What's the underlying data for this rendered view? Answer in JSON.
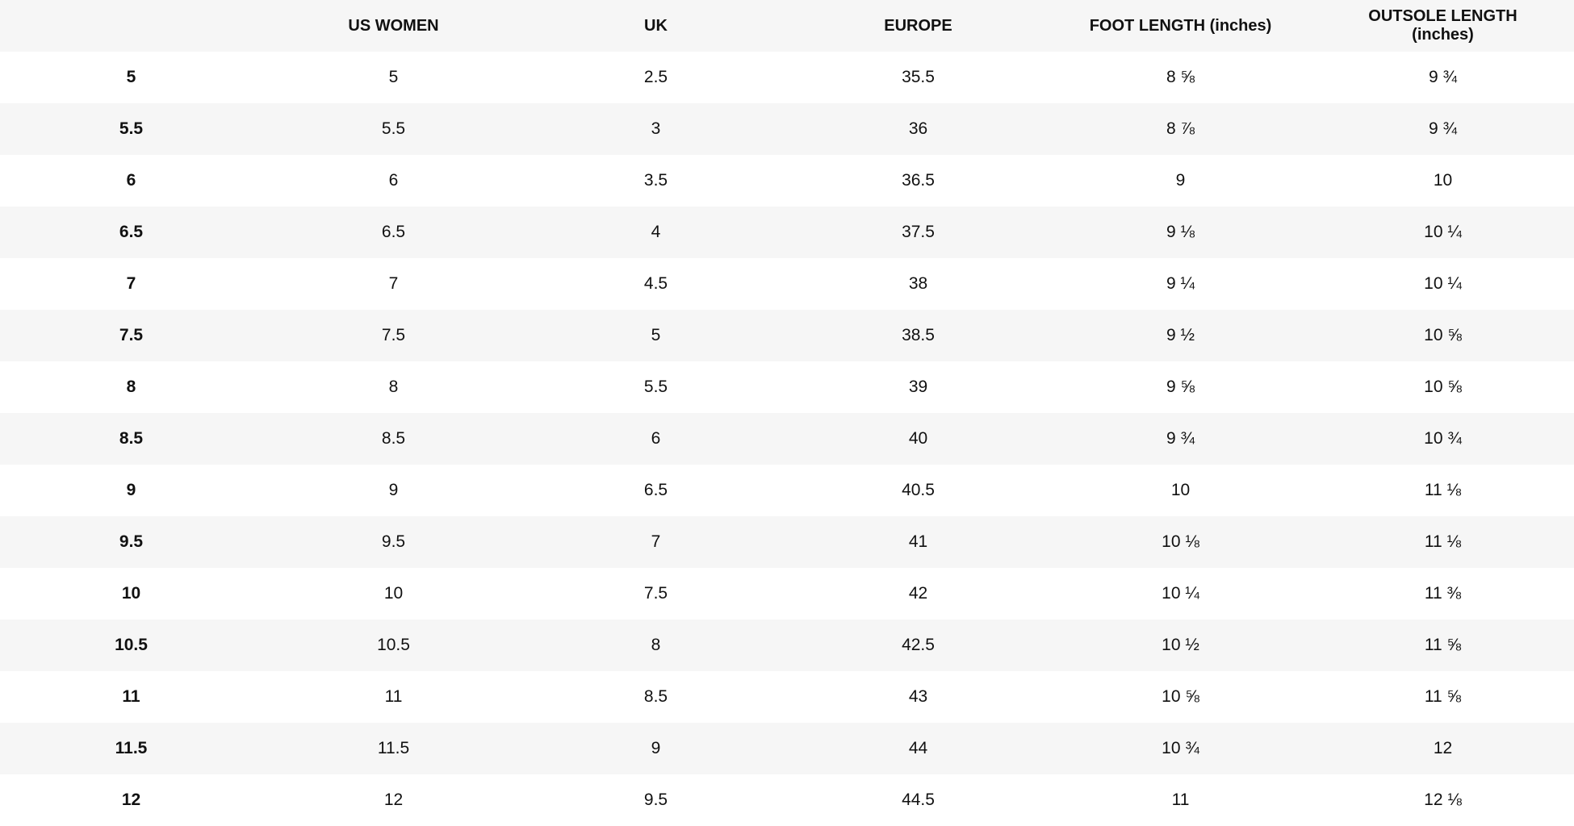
{
  "table": {
    "headers": [
      "",
      "US WOMEN",
      "UK",
      "EUROPE",
      "FOOT LENGTH (inches)",
      "OUTSOLE LENGTH (inches)"
    ],
    "rows": [
      [
        "5",
        "5",
        "2.5",
        "35.5",
        "8 ⅝",
        "9 ¾"
      ],
      [
        "5.5",
        "5.5",
        "3",
        "36",
        "8 ⅞",
        "9 ¾"
      ],
      [
        "6",
        "6",
        "3.5",
        "36.5",
        "9",
        "10"
      ],
      [
        "6.5",
        "6.5",
        "4",
        "37.5",
        "9 ⅛",
        "10 ¼"
      ],
      [
        "7",
        "7",
        "4.5",
        "38",
        "9 ¼",
        "10 ¼"
      ],
      [
        "7.5",
        "7.5",
        "5",
        "38.5",
        "9 ½",
        "10 ⅝"
      ],
      [
        "8",
        "8",
        "5.5",
        "39",
        "9 ⅝",
        "10 ⅝"
      ],
      [
        "8.5",
        "8.5",
        "6",
        "40",
        "9 ¾",
        "10 ¾"
      ],
      [
        "9",
        "9",
        "6.5",
        "40.5",
        "10",
        "11 ⅛"
      ],
      [
        "9.5",
        "9.5",
        "7",
        "41",
        "10 ⅛",
        "11 ⅛"
      ],
      [
        "10",
        "10",
        "7.5",
        "42",
        "10 ¼",
        "11 ⅜"
      ],
      [
        "10.5",
        "10.5",
        "8",
        "42.5",
        "10 ½",
        "11 ⅝"
      ],
      [
        "11",
        "11",
        "8.5",
        "43",
        "10 ⅝",
        "11 ⅝"
      ],
      [
        "11.5",
        "11.5",
        "9",
        "44",
        "10 ¾",
        "12"
      ],
      [
        "12",
        "12",
        "9.5",
        "44.5",
        "11",
        "12 ⅛"
      ]
    ],
    "colors": {
      "stripe": "#f6f6f6",
      "background": "#ffffff",
      "text": "#111111"
    }
  }
}
